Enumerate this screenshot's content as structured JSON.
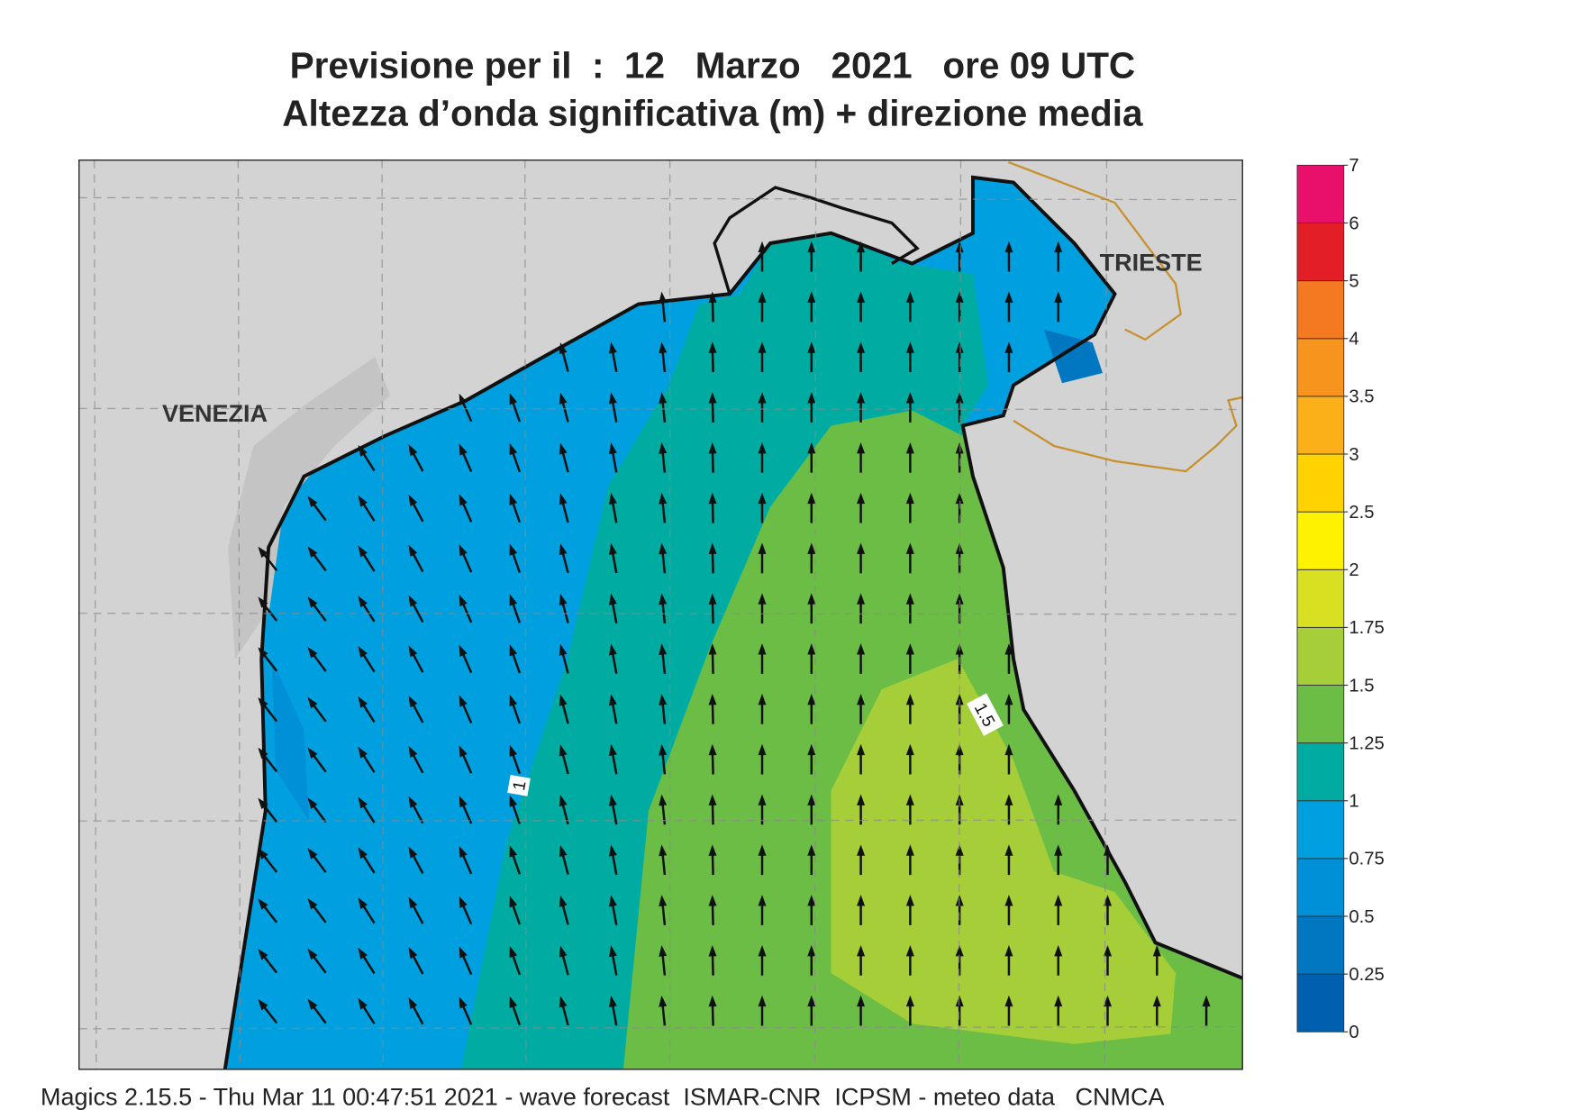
{
  "header": {
    "title": "Previsione per il  :  12   Marzo   2021   ore 09 UTC",
    "subtitle": "Altezza d’onda significativa (m) + direzione media"
  },
  "map": {
    "labels": [
      "VENEZIA",
      "TRIESTE"
    ],
    "contour_labels": [
      1,
      1.5
    ]
  },
  "colorbar": {
    "levels": [
      0,
      0.25,
      0.5,
      0.75,
      1,
      1.25,
      1.5,
      1.75,
      2,
      2.5,
      3,
      3.5,
      4,
      5,
      6,
      7
    ],
    "colors": [
      "#005fae",
      "#0077c0",
      "#0090d8",
      "#00a0e0",
      "#00aca2",
      "#6cbd45",
      "#a6ce39",
      "#d9e021",
      "#fff200",
      "#ffd200",
      "#fbb01a",
      "#f7941d",
      "#f47920",
      "#e41e26",
      "#e8106a"
    ]
  },
  "footer": "Magics 2.15.5 - Thu Mar 11 00:47:51 2021 - wave forecast  ISMAR-CNR  ICPSM - meteo data   CNMCA"
}
